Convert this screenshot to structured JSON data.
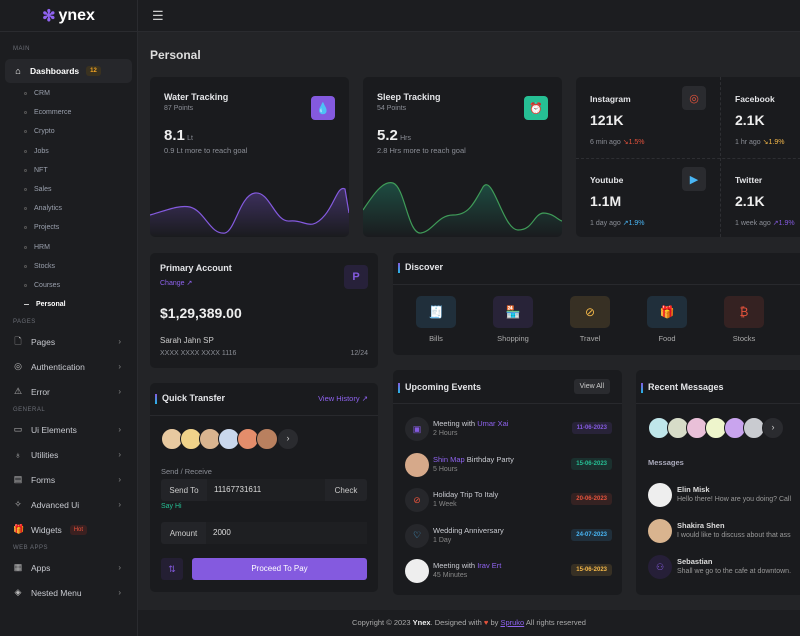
{
  "brand": {
    "name": "ynex"
  },
  "sidebar": {
    "sections": {
      "main": "MAIN",
      "pages": "PAGES",
      "general": "GENERAL",
      "webapps": "WEB APPS"
    },
    "dashboards": {
      "label": "Dashboards",
      "badge": "12"
    },
    "subitems": [
      "CRM",
      "Ecommerce",
      "Crypto",
      "Jobs",
      "NFT",
      "Sales",
      "Analytics",
      "Projects",
      "HRM",
      "Stocks",
      "Courses",
      "Personal"
    ],
    "pages_items": [
      {
        "label": "Pages",
        "icon": "file-icon"
      },
      {
        "label": "Authentication",
        "icon": "fingerprint-icon"
      },
      {
        "label": "Error",
        "icon": "warning-icon"
      }
    ],
    "general_items": [
      {
        "label": "Ui Elements",
        "icon": "box-icon"
      },
      {
        "label": "Utilities",
        "icon": "medal-icon"
      },
      {
        "label": "Forms",
        "icon": "form-icon"
      },
      {
        "label": "Advanced Ui",
        "icon": "party-icon"
      },
      {
        "label": "Widgets",
        "icon": "gift-icon",
        "badge": "Hot"
      }
    ],
    "webapp_items": [
      {
        "label": "Apps",
        "icon": "grid-icon"
      },
      {
        "label": "Nested Menu",
        "icon": "layers-icon"
      }
    ]
  },
  "page_title": "Personal",
  "water": {
    "title": "Water Tracking",
    "points": "87 Points",
    "value": "8.1",
    "unit": "Lt",
    "note": "0.9 Lt more to reach goal",
    "color": "#845adf"
  },
  "sleep": {
    "title": "Sleep Tracking",
    "points": "54 Points",
    "value": "5.2",
    "unit": "Hrs",
    "note": "2.8 Hrs more to reach goal",
    "color": "#26bf94"
  },
  "social": [
    {
      "name": "Instagram",
      "value": "121K",
      "time": "6 min ago",
      "change": "↘1.5%",
      "color": "#e6533c"
    },
    {
      "name": "Facebook",
      "value": "2.1K",
      "time": "1 hr ago",
      "change": "↘1.9%",
      "color": "#f5b849"
    },
    {
      "name": "Youtube",
      "value": "1.1M",
      "time": "1 day ago",
      "change": "↗1.9%",
      "color": "#49b6f5"
    },
    {
      "name": "Twitter",
      "value": "2.1K",
      "time": "1 week ago",
      "change": "↗1.9%",
      "color": "#845adf"
    }
  ],
  "account": {
    "title": "Primary Account",
    "change": "Change",
    "balance": "$1,29,389.00",
    "holder": "Sarah Jahn SP",
    "card": "XXXX XXXX XXXX 1116",
    "expiry": "12/24"
  },
  "discover": {
    "title": "Discover",
    "items": [
      {
        "label": "Bills",
        "color": "#49b6f5"
      },
      {
        "label": "Shopping",
        "color": "#845adf"
      },
      {
        "label": "Travel",
        "color": "#f5b849"
      },
      {
        "label": "Food",
        "color": "#49b6f5"
      },
      {
        "label": "Stocks",
        "color": "#e6533c"
      }
    ]
  },
  "transfer": {
    "title": "Quick Transfer",
    "history": "View History",
    "send_receive": "Send / Receive",
    "send_to": "Send To",
    "send_to_value": "11167731611",
    "check": "Check",
    "say_hi": "Say Hi",
    "amount_label": "Amount",
    "amount_value": "2000",
    "proceed": "Proceed To Pay"
  },
  "events": {
    "title": "Upcoming Events",
    "view_all": "View All",
    "items": [
      {
        "pre": "Meeting with ",
        "hl": "Umar Xai",
        "post": "",
        "sub": "2 Hours",
        "date": "11-06-2023",
        "color": "#845adf"
      },
      {
        "pre": "",
        "hl": "Shin Map",
        "post": " Birthday Party",
        "sub": "5 Hours",
        "date": "15-06-2023",
        "color": "#26bf94"
      },
      {
        "pre": "Holiday Trip To Italy",
        "hl": "",
        "post": "",
        "sub": "1 Week",
        "date": "20-06-2023",
        "color": "#e6533c"
      },
      {
        "pre": "Wedding Anniversary",
        "hl": "",
        "post": "",
        "sub": "1 Day",
        "date": "24-07-2023",
        "color": "#49b6f5"
      },
      {
        "pre": "Meeting with ",
        "hl": "Irav Ert",
        "post": "",
        "sub": "45 Minutes",
        "date": "15-06-2023",
        "color": "#f5b849"
      }
    ]
  },
  "messages": {
    "title": "Recent Messages",
    "label": "Messages",
    "items": [
      {
        "name": "Elin Misk",
        "text": "Hello there! How are you doing? Call"
      },
      {
        "name": "Shakira Shen",
        "text": "I would like to discuss about that ass"
      },
      {
        "name": "Sebastian",
        "text": "Shall we go to the cafe at downtown."
      }
    ]
  },
  "footer": {
    "pre": "Copyright © 2023 ",
    "brand": "Ynex",
    "mid": ". Designed with ",
    "by": " by ",
    "company": "Spruko",
    "post": " All rights reserved"
  }
}
